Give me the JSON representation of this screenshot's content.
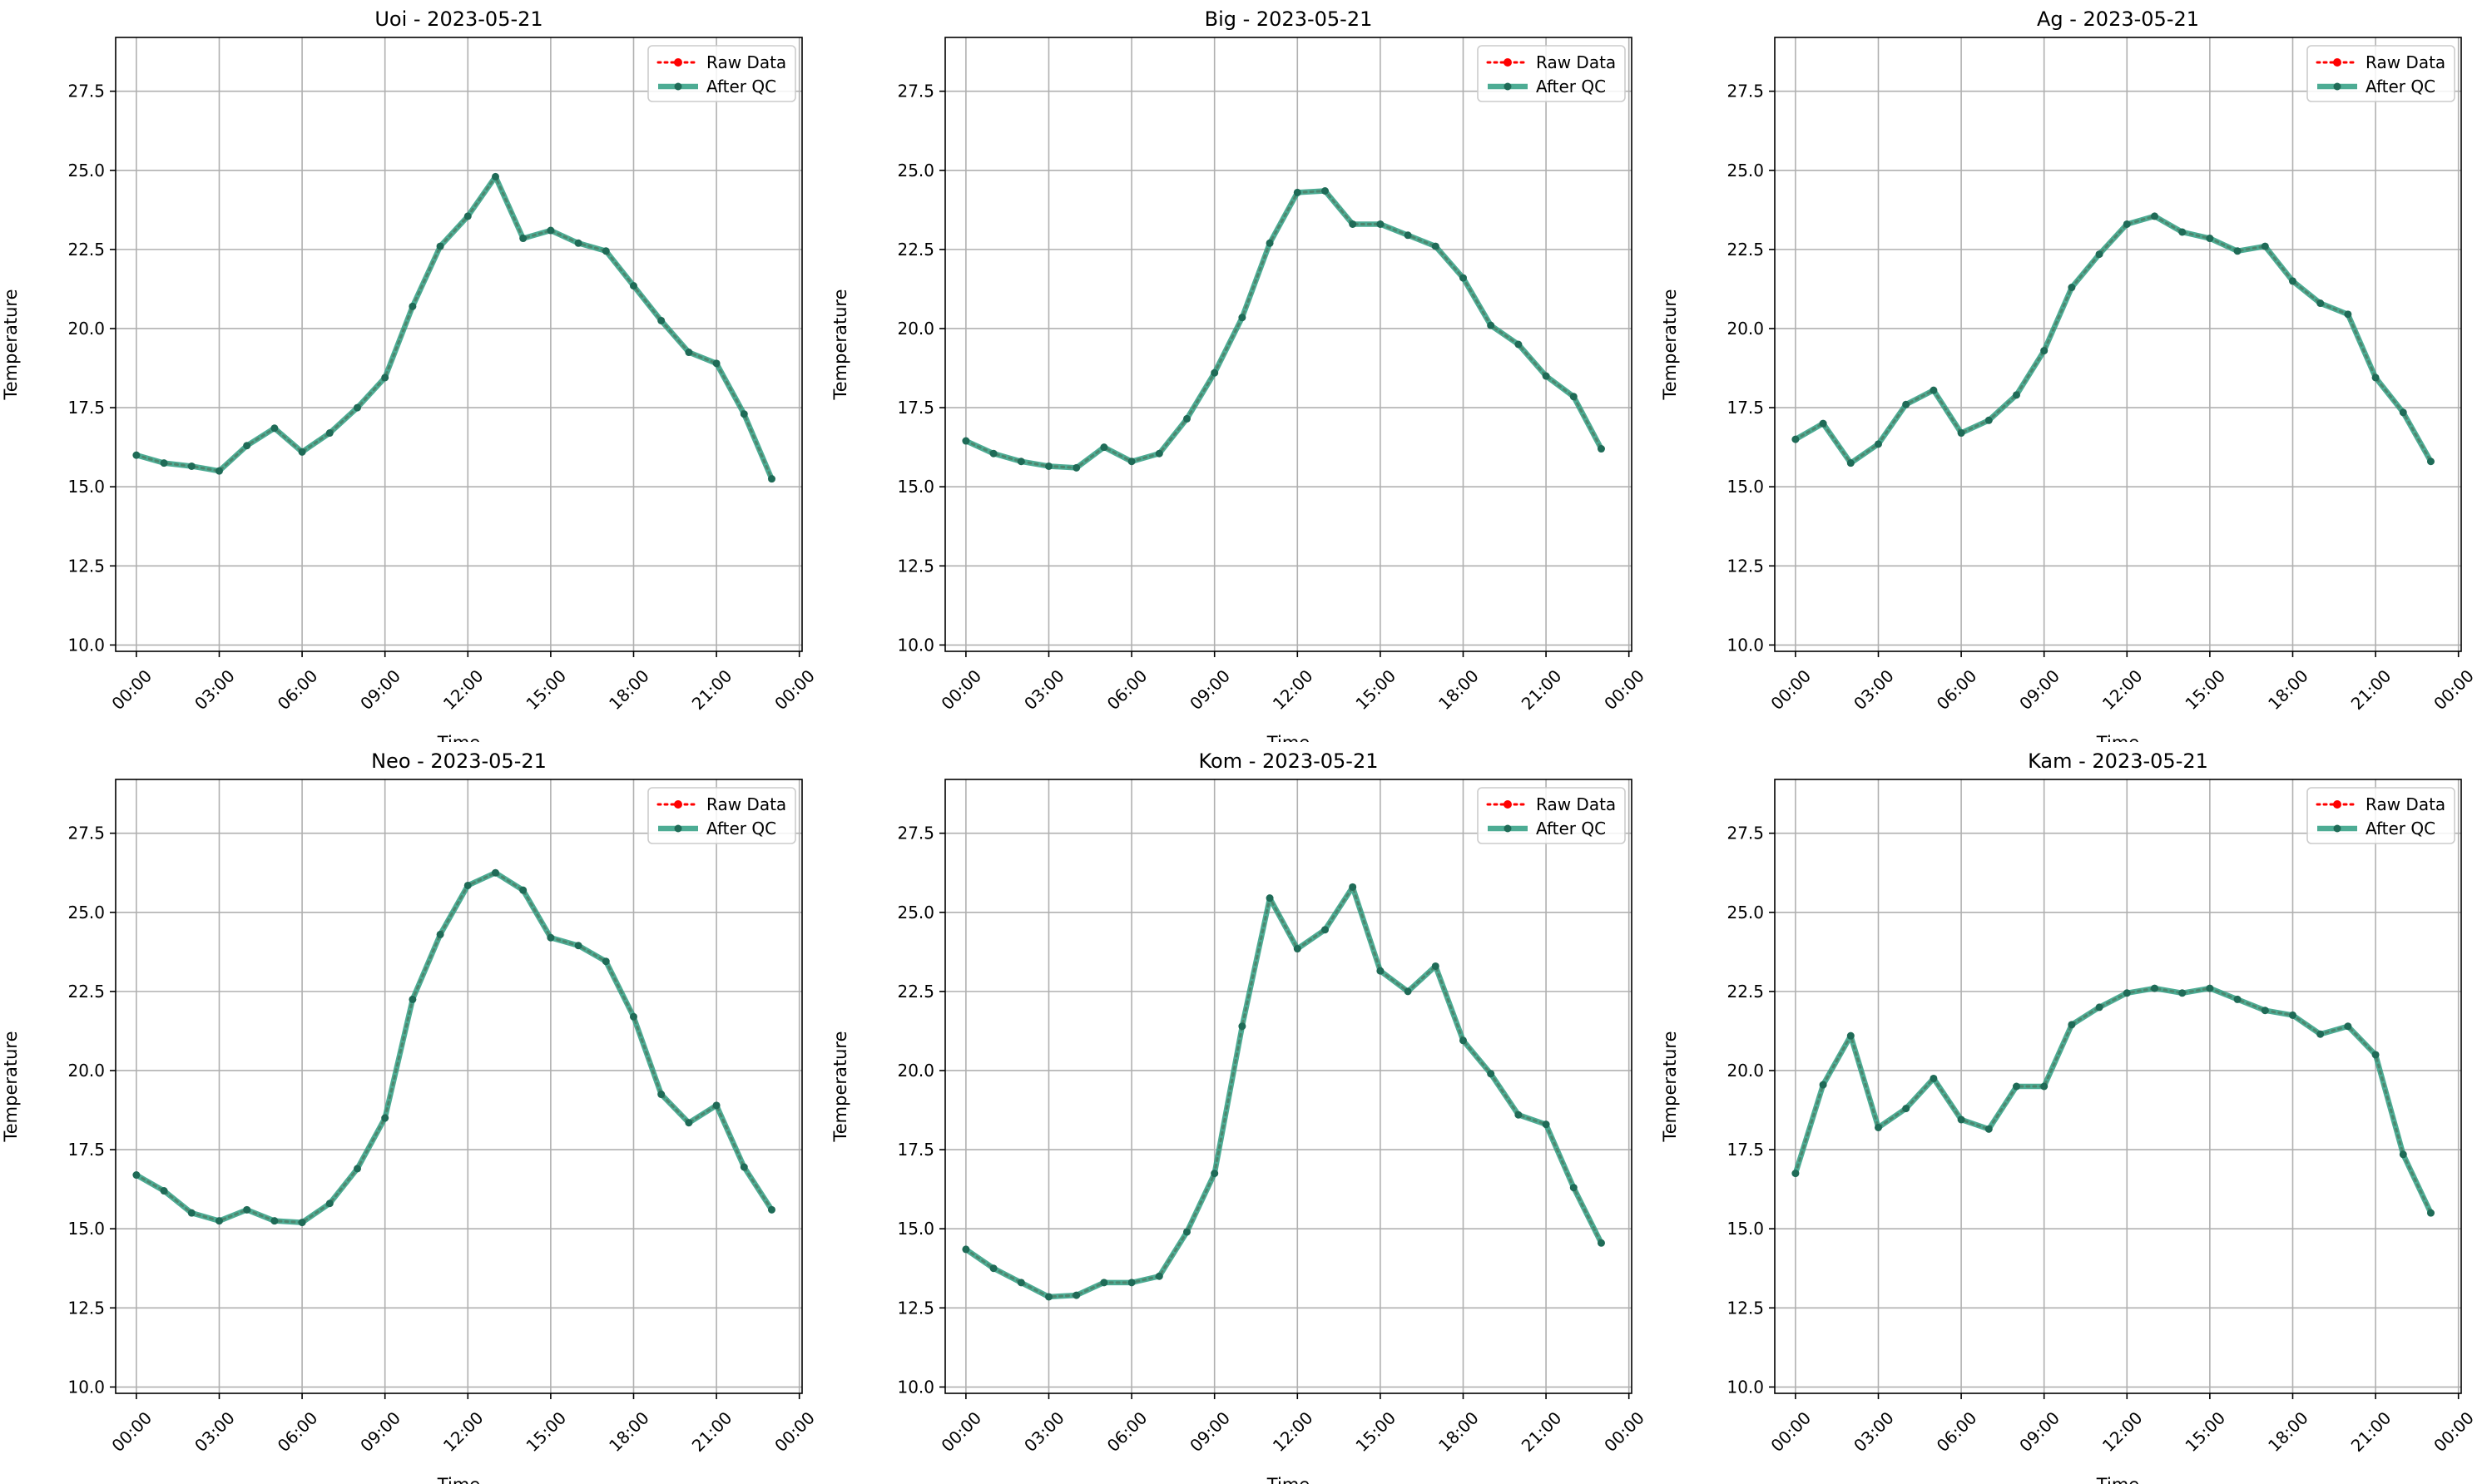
{
  "figure": {
    "type": "line-grid",
    "rows": 2,
    "cols": 3
  },
  "chart_data": [
    {
      "type": "line",
      "title": "Uoi - 2023-05-21",
      "xlabel": "Time",
      "ylabel": "Temperature",
      "xlim": [
        -0.75,
        24.1
      ],
      "ylim": [
        9.8,
        29.2
      ],
      "xticks": [
        0,
        3,
        6,
        9,
        12,
        15,
        18,
        21,
        24
      ],
      "xtick_labels": [
        "00:00",
        "03:00",
        "06:00",
        "09:00",
        "12:00",
        "15:00",
        "18:00",
        "21:00",
        "00:00"
      ],
      "yticks": [
        10.0,
        12.5,
        15.0,
        17.5,
        20.0,
        22.5,
        25.0,
        27.5
      ],
      "ytick_labels": [
        "10.0",
        "12.5",
        "15.0",
        "17.5",
        "20.0",
        "22.5",
        "25.0",
        "27.5"
      ],
      "grid": true,
      "legend_position": "top-right",
      "x": [
        0,
        1,
        2,
        3,
        4,
        5,
        6,
        7,
        8,
        9,
        10,
        11,
        12,
        13,
        14,
        15,
        16,
        17,
        18,
        19,
        20,
        21,
        22,
        23
      ],
      "series": [
        {
          "name": "Raw Data",
          "color": "#ff0000",
          "style": "dotted",
          "values": [
            16.0,
            15.75,
            15.65,
            15.5,
            16.3,
            16.85,
            16.1,
            16.7,
            17.5,
            18.45,
            20.7,
            22.6,
            23.55,
            24.8,
            22.85,
            23.1,
            22.7,
            22.45,
            21.35,
            20.25,
            19.25,
            18.9,
            17.3,
            15.25
          ]
        },
        {
          "name": "After QC",
          "color": "#2e9e81",
          "style": "solid",
          "values": [
            16.0,
            15.75,
            15.65,
            15.5,
            16.3,
            16.85,
            16.1,
            16.7,
            17.5,
            18.45,
            20.7,
            22.6,
            23.55,
            24.8,
            22.85,
            23.1,
            22.7,
            22.45,
            21.35,
            20.25,
            19.25,
            18.9,
            17.3,
            15.25
          ]
        }
      ]
    },
    {
      "type": "line",
      "title": "Big - 2023-05-21",
      "xlabel": "Time",
      "ylabel": "Temperature",
      "xlim": [
        -0.75,
        24.1
      ],
      "ylim": [
        9.8,
        29.2
      ],
      "xticks": [
        0,
        3,
        6,
        9,
        12,
        15,
        18,
        21,
        24
      ],
      "xtick_labels": [
        "00:00",
        "03:00",
        "06:00",
        "09:00",
        "12:00",
        "15:00",
        "18:00",
        "21:00",
        "00:00"
      ],
      "yticks": [
        10.0,
        12.5,
        15.0,
        17.5,
        20.0,
        22.5,
        25.0,
        27.5
      ],
      "ytick_labels": [
        "10.0",
        "12.5",
        "15.0",
        "17.5",
        "20.0",
        "22.5",
        "25.0",
        "27.5"
      ],
      "grid": true,
      "legend_position": "top-right",
      "x": [
        0,
        1,
        2,
        3,
        4,
        5,
        6,
        7,
        8,
        9,
        10,
        11,
        12,
        13,
        14,
        15,
        16,
        17,
        18,
        19,
        20,
        21,
        22,
        23
      ],
      "series": [
        {
          "name": "Raw Data",
          "color": "#ff0000",
          "style": "dotted",
          "values": [
            16.45,
            16.05,
            15.8,
            15.65,
            15.6,
            16.25,
            15.8,
            16.05,
            17.15,
            18.6,
            20.35,
            22.7,
            24.3,
            24.35,
            23.3,
            23.3,
            22.95,
            22.6,
            21.6,
            20.1,
            19.5,
            18.5,
            17.85,
            16.2
          ]
        },
        {
          "name": "After QC",
          "color": "#2e9e81",
          "style": "solid",
          "values": [
            16.45,
            16.05,
            15.8,
            15.65,
            15.6,
            16.25,
            15.8,
            16.05,
            17.15,
            18.6,
            20.35,
            22.7,
            24.3,
            24.35,
            23.3,
            23.3,
            22.95,
            22.6,
            21.6,
            20.1,
            19.5,
            18.5,
            17.85,
            16.2
          ]
        }
      ]
    },
    {
      "type": "line",
      "title": "Ag - 2023-05-21",
      "xlabel": "Time",
      "ylabel": "Temperature",
      "xlim": [
        -0.75,
        24.1
      ],
      "ylim": [
        9.8,
        29.2
      ],
      "xticks": [
        0,
        3,
        6,
        9,
        12,
        15,
        18,
        21,
        24
      ],
      "xtick_labels": [
        "00:00",
        "03:00",
        "06:00",
        "09:00",
        "12:00",
        "15:00",
        "18:00",
        "21:00",
        "00:00"
      ],
      "yticks": [
        10.0,
        12.5,
        15.0,
        17.5,
        20.0,
        22.5,
        25.0,
        27.5
      ],
      "ytick_labels": [
        "10.0",
        "12.5",
        "15.0",
        "17.5",
        "20.0",
        "22.5",
        "25.0",
        "27.5"
      ],
      "grid": true,
      "legend_position": "top-right",
      "x": [
        0,
        1,
        2,
        3,
        4,
        5,
        6,
        7,
        8,
        9,
        10,
        11,
        12,
        13,
        14,
        15,
        16,
        17,
        18,
        19,
        20,
        21,
        22,
        23
      ],
      "series": [
        {
          "name": "Raw Data",
          "color": "#ff0000",
          "style": "dotted",
          "values": [
            16.5,
            17.0,
            15.75,
            16.35,
            17.6,
            18.05,
            16.7,
            17.1,
            17.9,
            19.3,
            21.3,
            22.35,
            23.3,
            23.55,
            23.05,
            22.85,
            22.45,
            22.6,
            21.5,
            20.8,
            20.45,
            18.45,
            17.35,
            15.8
          ]
        },
        {
          "name": "After QC",
          "color": "#2e9e81",
          "style": "solid",
          "values": [
            16.5,
            17.0,
            15.75,
            16.35,
            17.6,
            18.05,
            16.7,
            17.1,
            17.9,
            19.3,
            21.3,
            22.35,
            23.3,
            23.55,
            23.05,
            22.85,
            22.45,
            22.6,
            21.5,
            20.8,
            20.45,
            18.45,
            17.35,
            15.8
          ]
        }
      ]
    },
    {
      "type": "line",
      "title": "Neo - 2023-05-21",
      "xlabel": "Time",
      "ylabel": "Temperature",
      "xlim": [
        -0.75,
        24.1
      ],
      "ylim": [
        9.8,
        29.2
      ],
      "xticks": [
        0,
        3,
        6,
        9,
        12,
        15,
        18,
        21,
        24
      ],
      "xtick_labels": [
        "00:00",
        "03:00",
        "06:00",
        "09:00",
        "12:00",
        "15:00",
        "18:00",
        "21:00",
        "00:00"
      ],
      "yticks": [
        10.0,
        12.5,
        15.0,
        17.5,
        20.0,
        22.5,
        25.0,
        27.5
      ],
      "ytick_labels": [
        "10.0",
        "12.5",
        "15.0",
        "17.5",
        "20.0",
        "22.5",
        "25.0",
        "27.5"
      ],
      "grid": true,
      "legend_position": "top-right",
      "x": [
        0,
        1,
        2,
        3,
        4,
        5,
        6,
        7,
        8,
        9,
        10,
        11,
        12,
        13,
        14,
        15,
        16,
        17,
        18,
        19,
        20,
        21,
        22,
        23
      ],
      "series": [
        {
          "name": "Raw Data",
          "color": "#ff0000",
          "style": "dotted",
          "values": [
            16.7,
            16.2,
            15.5,
            15.25,
            15.6,
            15.25,
            15.2,
            15.8,
            16.9,
            18.5,
            22.25,
            24.3,
            25.85,
            26.25,
            25.7,
            24.2,
            23.95,
            23.45,
            21.7,
            19.25,
            18.35,
            18.9,
            16.95,
            15.6
          ]
        },
        {
          "name": "After QC",
          "color": "#2e9e81",
          "style": "solid",
          "values": [
            16.7,
            16.2,
            15.5,
            15.25,
            15.6,
            15.25,
            15.2,
            15.8,
            16.9,
            18.5,
            22.25,
            24.3,
            25.85,
            26.25,
            25.7,
            24.2,
            23.95,
            23.45,
            21.7,
            19.25,
            18.35,
            18.9,
            16.95,
            15.6
          ]
        }
      ]
    },
    {
      "type": "line",
      "title": "Kom - 2023-05-21",
      "xlabel": "Time",
      "ylabel": "Temperature",
      "xlim": [
        -0.75,
        24.1
      ],
      "ylim": [
        9.8,
        29.2
      ],
      "xticks": [
        0,
        3,
        6,
        9,
        12,
        15,
        18,
        21,
        24
      ],
      "xtick_labels": [
        "00:00",
        "03:00",
        "06:00",
        "09:00",
        "12:00",
        "15:00",
        "18:00",
        "21:00",
        "00:00"
      ],
      "yticks": [
        10.0,
        12.5,
        15.0,
        17.5,
        20.0,
        22.5,
        25.0,
        27.5
      ],
      "ytick_labels": [
        "10.0",
        "12.5",
        "15.0",
        "17.5",
        "20.0",
        "22.5",
        "25.0",
        "27.5"
      ],
      "grid": true,
      "legend_position": "top-right",
      "x": [
        0,
        1,
        2,
        3,
        4,
        5,
        6,
        7,
        8,
        9,
        10,
        11,
        12,
        13,
        14,
        15,
        16,
        17,
        18,
        19,
        20,
        21,
        22,
        23
      ],
      "series": [
        {
          "name": "Raw Data",
          "color": "#ff0000",
          "style": "dotted",
          "values": [
            14.35,
            13.75,
            13.3,
            12.85,
            12.9,
            13.3,
            13.3,
            13.5,
            14.9,
            16.75,
            21.4,
            25.45,
            23.85,
            24.45,
            25.8,
            23.15,
            22.5,
            23.3,
            20.95,
            19.9,
            18.6,
            18.3,
            16.3,
            14.55
          ]
        },
        {
          "name": "After QC",
          "color": "#2e9e81",
          "style": "solid",
          "values": [
            14.35,
            13.75,
            13.3,
            12.85,
            12.9,
            13.3,
            13.3,
            13.5,
            14.9,
            16.75,
            21.4,
            25.45,
            23.85,
            24.45,
            25.8,
            23.15,
            22.5,
            23.3,
            20.95,
            19.9,
            18.6,
            18.3,
            16.3,
            14.55
          ]
        }
      ]
    },
    {
      "type": "line",
      "title": "Kam - 2023-05-21",
      "xlabel": "Time",
      "ylabel": "Temperature",
      "xlim": [
        -0.75,
        24.1
      ],
      "ylim": [
        9.8,
        29.2
      ],
      "xticks": [
        0,
        3,
        6,
        9,
        12,
        15,
        18,
        21,
        24
      ],
      "xtick_labels": [
        "00:00",
        "03:00",
        "06:00",
        "09:00",
        "12:00",
        "15:00",
        "18:00",
        "21:00",
        "00:00"
      ],
      "yticks": [
        10.0,
        12.5,
        15.0,
        17.5,
        20.0,
        22.5,
        25.0,
        27.5
      ],
      "ytick_labels": [
        "10.0",
        "12.5",
        "15.0",
        "17.5",
        "20.0",
        "22.5",
        "25.0",
        "27.5"
      ],
      "grid": true,
      "legend_position": "top-right",
      "x": [
        0,
        1,
        2,
        3,
        4,
        5,
        6,
        7,
        8,
        9,
        10,
        11,
        12,
        13,
        14,
        15,
        16,
        17,
        18,
        19,
        20,
        21,
        22,
        23
      ],
      "series": [
        {
          "name": "Raw Data",
          "color": "#ff0000",
          "style": "dotted",
          "values": [
            16.75,
            19.55,
            21.1,
            18.2,
            18.8,
            19.75,
            18.45,
            18.15,
            19.5,
            19.5,
            21.45,
            22.0,
            22.45,
            22.6,
            22.45,
            22.6,
            22.25,
            21.9,
            21.75,
            21.15,
            21.4,
            20.5,
            17.35,
            15.5
          ]
        },
        {
          "name": "After QC",
          "color": "#2e9e81",
          "style": "solid",
          "values": [
            16.75,
            19.55,
            21.1,
            18.2,
            18.8,
            19.75,
            18.45,
            18.15,
            19.5,
            19.5,
            21.45,
            22.0,
            22.45,
            22.6,
            22.45,
            22.6,
            22.25,
            21.9,
            21.75,
            21.15,
            21.4,
            20.5,
            17.35,
            15.5
          ]
        }
      ]
    }
  ]
}
